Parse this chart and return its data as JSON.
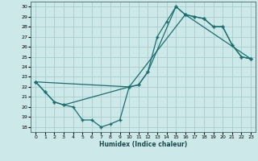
{
  "title": "",
  "xlabel": "Humidex (Indice chaleur)",
  "background_color": "#cce8e8",
  "grid_color": "#aacccc",
  "line_color": "#1a6e6e",
  "xlim": [
    -0.5,
    23.5
  ],
  "ylim": [
    17.5,
    30.5
  ],
  "xticks": [
    0,
    1,
    2,
    3,
    4,
    5,
    6,
    7,
    8,
    9,
    10,
    11,
    12,
    13,
    14,
    15,
    16,
    17,
    18,
    19,
    20,
    21,
    22,
    23
  ],
  "yticks": [
    18,
    19,
    20,
    21,
    22,
    23,
    24,
    25,
    26,
    27,
    28,
    29,
    30
  ],
  "line1_x": [
    0,
    1,
    2,
    3,
    4,
    5,
    6,
    7,
    8,
    9,
    10,
    11,
    12,
    13,
    14,
    15,
    16,
    17,
    18,
    19,
    20,
    21,
    22,
    23
  ],
  "line1_y": [
    22.5,
    21.5,
    20.5,
    20.2,
    20.0,
    18.7,
    18.7,
    18.0,
    18.3,
    18.7,
    22.0,
    22.2,
    23.5,
    27.0,
    28.5,
    30.0,
    29.2,
    29.0,
    28.8,
    28.0,
    28.0,
    26.2,
    25.0,
    24.8
  ],
  "line2_x": [
    0,
    1,
    2,
    3,
    10,
    11,
    12,
    15,
    16,
    17,
    18,
    19,
    20,
    21,
    22,
    23
  ],
  "line2_y": [
    22.5,
    21.5,
    20.5,
    20.2,
    22.0,
    22.2,
    23.5,
    30.0,
    29.2,
    29.0,
    28.8,
    28.0,
    28.0,
    26.2,
    25.0,
    24.8
  ],
  "line3_x": [
    0,
    10,
    16,
    23
  ],
  "line3_y": [
    22.5,
    22.0,
    29.2,
    24.8
  ]
}
